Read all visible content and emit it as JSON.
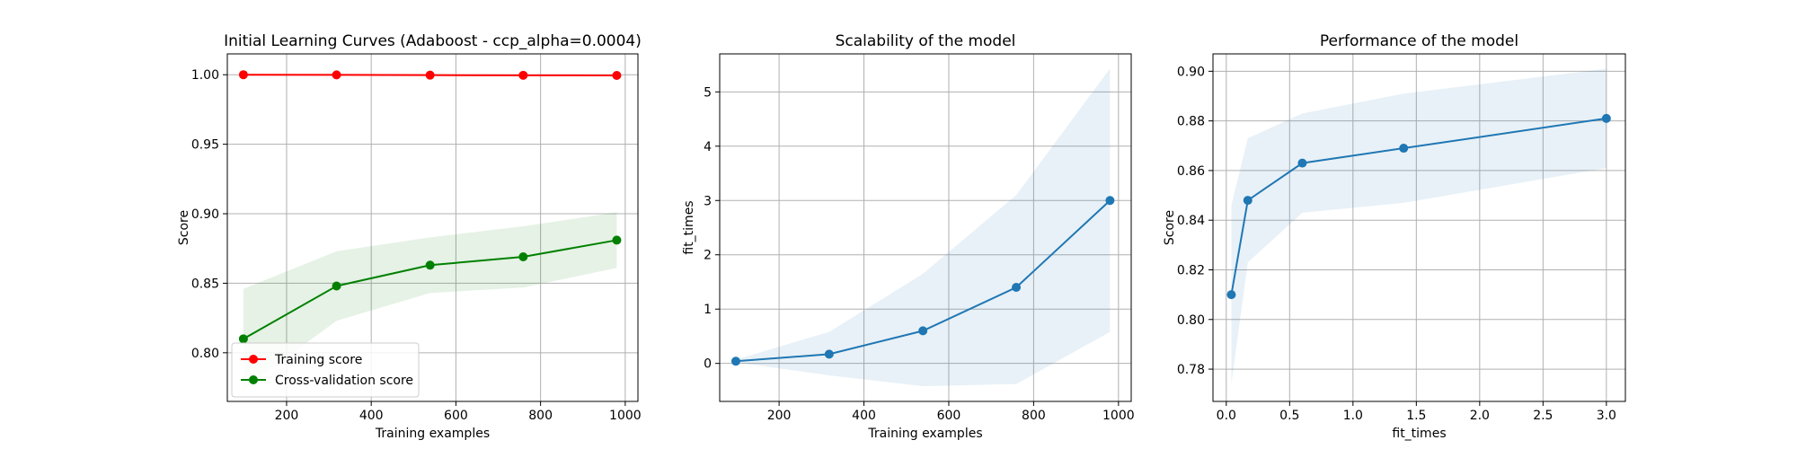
{
  "chart_data": [
    {
      "type": "line",
      "title": "Initial Learning Curves (Adaboost - ccp_alpha=0.0004)",
      "xlabel": "Training examples",
      "ylabel": "Score",
      "xlim": [
        60,
        1030
      ],
      "ylim": [
        0.765,
        1.015
      ],
      "xticks": [
        200,
        400,
        600,
        800,
        1000
      ],
      "xtick_labels": [
        "200",
        "400",
        "600",
        "800",
        "1000"
      ],
      "yticks": [
        0.8,
        0.85,
        0.9,
        0.95,
        1.0
      ],
      "ytick_labels": [
        "0.80",
        "0.85",
        "0.90",
        "0.95",
        "1.00"
      ],
      "grid": true,
      "legend": "lower-left",
      "x": [
        98,
        318,
        539,
        759,
        980
      ],
      "series": [
        {
          "name": "Training score",
          "color": "#ff0000",
          "values": [
            1.0,
            0.9999,
            0.9997,
            0.9996,
            0.9995
          ],
          "band_lower": [
            1.0,
            0.9999,
            0.9997,
            0.9996,
            0.9995
          ],
          "band_upper": [
            1.0,
            0.9999,
            0.9997,
            0.9996,
            0.9995
          ]
        },
        {
          "name": "Cross-validation score",
          "color": "#008000",
          "values": [
            0.81,
            0.848,
            0.863,
            0.869,
            0.881
          ],
          "band_lower": [
            0.774,
            0.823,
            0.843,
            0.847,
            0.861
          ],
          "band_upper": [
            0.846,
            0.873,
            0.883,
            0.891,
            0.901
          ]
        }
      ]
    },
    {
      "type": "line",
      "title": "Scalability of the model",
      "xlabel": "Training examples",
      "ylabel": "fit_times",
      "xlim": [
        60,
        1030
      ],
      "ylim": [
        -0.7,
        5.7
      ],
      "xticks": [
        200,
        400,
        600,
        800,
        1000
      ],
      "xtick_labels": [
        "200",
        "400",
        "600",
        "800",
        "1000"
      ],
      "yticks": [
        0,
        1,
        2,
        3,
        4,
        5
      ],
      "ytick_labels": [
        "0",
        "1",
        "2",
        "3",
        "4",
        "5"
      ],
      "grid": true,
      "legend": "none",
      "x": [
        98,
        318,
        539,
        759,
        980
      ],
      "series": [
        {
          "color": "#1f77b4",
          "values": [
            0.04,
            0.17,
            0.6,
            1.4,
            3.0
          ],
          "band_lower": [
            0.02,
            -0.22,
            -0.42,
            -0.38,
            0.58
          ],
          "band_upper": [
            0.07,
            0.58,
            1.65,
            3.1,
            5.43
          ]
        }
      ]
    },
    {
      "type": "line",
      "title": "Performance of the model",
      "xlabel": "fit_times",
      "ylabel": "Score",
      "xlim": [
        -0.105,
        3.15
      ],
      "ylim": [
        0.767,
        0.907
      ],
      "xticks": [
        0.0,
        0.5,
        1.0,
        1.5,
        2.0,
        2.5,
        3.0
      ],
      "xtick_labels": [
        "0.0",
        "0.5",
        "1.0",
        "1.5",
        "2.0",
        "2.5",
        "3.0"
      ],
      "yticks": [
        0.78,
        0.8,
        0.82,
        0.84,
        0.86,
        0.88,
        0.9
      ],
      "ytick_labels": [
        "0.78",
        "0.80",
        "0.82",
        "0.84",
        "0.86",
        "0.88",
        "0.90"
      ],
      "grid": true,
      "legend": "none",
      "x": [
        0.04,
        0.17,
        0.6,
        1.4,
        3.0
      ],
      "series": [
        {
          "color": "#1f77b4",
          "values": [
            0.81,
            0.848,
            0.863,
            0.869,
            0.881
          ],
          "band_lower": [
            0.774,
            0.823,
            0.843,
            0.847,
            0.861
          ],
          "band_upper": [
            0.846,
            0.873,
            0.883,
            0.891,
            0.901
          ]
        }
      ]
    }
  ]
}
